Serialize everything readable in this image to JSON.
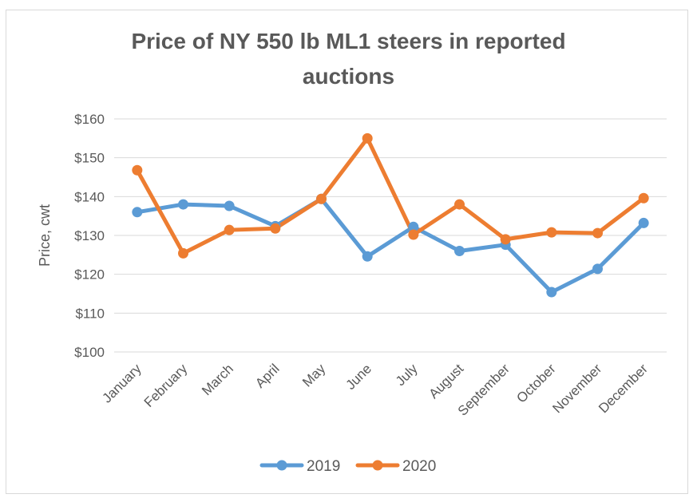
{
  "chart_data": {
    "type": "line",
    "title_line1": "Price of NY 550 lb ML1 steers in reported",
    "title_line2": "auctions",
    "xlabel": "",
    "ylabel": "Price, cwt",
    "categories": [
      "January",
      "February",
      "March",
      "April",
      "May",
      "June",
      "July",
      "August",
      "September",
      "October",
      "November",
      "December"
    ],
    "ylim": [
      100,
      160
    ],
    "yticks": [
      100,
      110,
      120,
      130,
      140,
      150,
      160
    ],
    "ytick_labels": [
      "$100",
      "$110",
      "$120",
      "$130",
      "$140",
      "$150",
      "$160"
    ],
    "grid": true,
    "legend_position": "bottom",
    "series": [
      {
        "name": "2019",
        "color": "#5B9BD5",
        "values": [
          136,
          138,
          137.6,
          132.4,
          139.4,
          124.6,
          132.2,
          126,
          127.6,
          115.4,
          121.4,
          133.2
        ]
      },
      {
        "name": "2020",
        "color": "#ED7D31",
        "values": [
          146.8,
          125.4,
          131.4,
          131.8,
          139.4,
          155,
          130.2,
          138,
          129,
          130.8,
          130.6,
          139.6
        ]
      }
    ]
  }
}
